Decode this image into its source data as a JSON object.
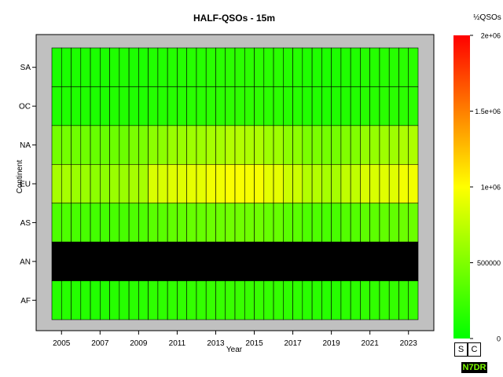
{
  "chart_data": {
    "type": "heatmap",
    "title": "HALF-QSOs - 15m",
    "xlabel": "Year",
    "ylabel": "Continent",
    "x": [
      2005,
      2006,
      2007,
      2008,
      2009,
      2010,
      2011,
      2012,
      2013,
      2014,
      2015,
      2016,
      2017,
      2018,
      2019,
      2020,
      2021,
      2022,
      2023
    ],
    "x_tick_labels": [
      "2005",
      "2007",
      "2009",
      "2011",
      "2013",
      "2015",
      "2017",
      "2019",
      "2021",
      "2023"
    ],
    "y_categories": [
      "SA",
      "OC",
      "NA",
      "EU",
      "AS",
      "AN",
      "AF"
    ],
    "colorbar": {
      "label": "½QSOs",
      "range": [
        0,
        2000000
      ],
      "tick_labels": [
        "2e+06",
        "1.5e+06",
        "1e+06",
        "500000",
        "0"
      ],
      "tick_values": [
        2000000,
        1500000,
        1000000,
        500000,
        0
      ],
      "colors": [
        "#00ff00",
        "#ffff00",
        "#ff0000"
      ]
    },
    "missing_color": "#000000",
    "values": {
      "SA": [
        100000,
        110000,
        100000,
        120000,
        110000,
        130000,
        140000,
        150000,
        160000,
        170000,
        170000,
        160000,
        140000,
        120000,
        110000,
        120000,
        140000,
        150000,
        160000
      ],
      "OC": [
        120000,
        120000,
        110000,
        130000,
        120000,
        140000,
        150000,
        160000,
        170000,
        180000,
        180000,
        170000,
        150000,
        130000,
        120000,
        130000,
        150000,
        160000,
        170000
      ],
      "NA": [
        450000,
        430000,
        400000,
        420000,
        480000,
        550000,
        600000,
        620000,
        650000,
        700000,
        680000,
        620000,
        550000,
        480000,
        450000,
        500000,
        580000,
        620000,
        680000
      ],
      "EU": [
        650000,
        600000,
        550000,
        600000,
        650000,
        850000,
        880000,
        900000,
        950000,
        980000,
        970000,
        900000,
        800000,
        700000,
        650000,
        750000,
        850000,
        880000,
        950000
      ],
      "AS": [
        300000,
        280000,
        260000,
        280000,
        300000,
        350000,
        380000,
        400000,
        420000,
        440000,
        430000,
        400000,
        350000,
        300000,
        280000,
        320000,
        360000,
        380000,
        420000
      ],
      "AN": [
        null,
        null,
        null,
        null,
        null,
        null,
        null,
        null,
        null,
        null,
        null,
        null,
        null,
        null,
        null,
        null,
        null,
        null,
        null
      ],
      "AF": [
        150000,
        140000,
        130000,
        150000,
        160000,
        180000,
        190000,
        200000,
        210000,
        220000,
        210000,
        200000,
        180000,
        160000,
        150000,
        170000,
        190000,
        200000,
        210000
      ]
    }
  },
  "controls": {
    "s_label": "S",
    "c_label": "C",
    "badge": "N7DR"
  }
}
